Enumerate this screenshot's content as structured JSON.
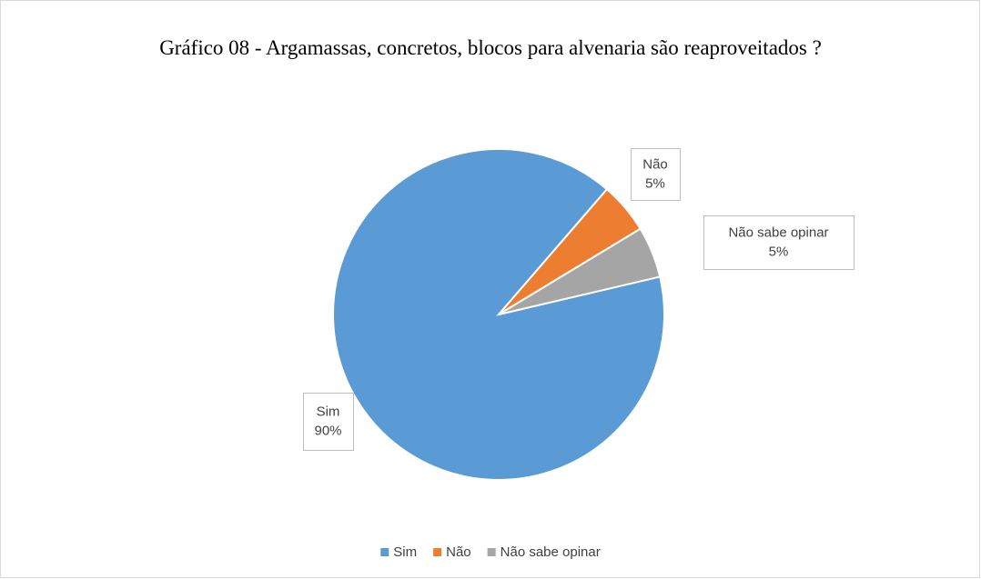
{
  "chart_data": {
    "type": "pie",
    "title": "Gráfico 08 - Argamassas, concretos, blocos para alvenaria são reaproveitados ?",
    "categories": [
      "Sim",
      "Não",
      "Não sabe opinar"
    ],
    "values": [
      90,
      5,
      5
    ],
    "value_labels": [
      "90%",
      "5%",
      "5%"
    ],
    "colors": [
      "#5b9bd5",
      "#ed7d31",
      "#a5a5a5"
    ],
    "legend": "bottom"
  }
}
